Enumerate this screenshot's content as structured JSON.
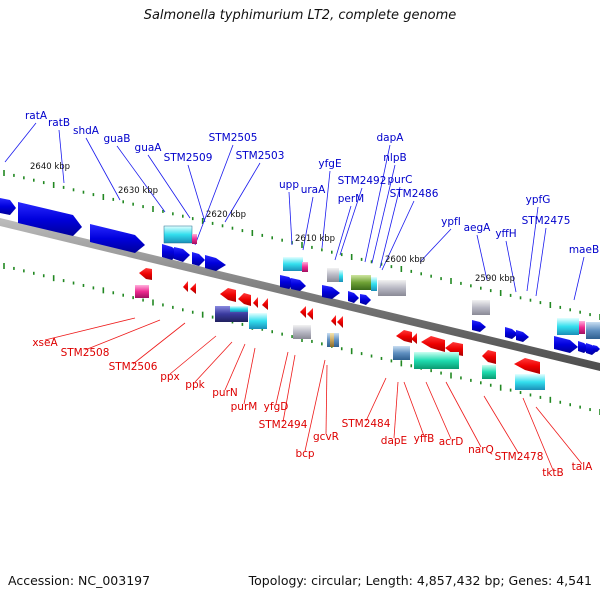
{
  "title": "Salmonella typhimurium LT2, complete genome",
  "footer": {
    "accession": "Accession: NC_003197",
    "summary": "Topology: circular; Length: 4,857,432 bp; Genes: 4,541"
  },
  "colors": {
    "forward_gene": "#0000dd",
    "reverse_gene": "#ee0000",
    "tick": "#228822",
    "backbone": "#808080",
    "leader": "#555555"
  },
  "ruler": [
    {
      "label": "2640 kbp"
    },
    {
      "label": "2630 kbp"
    },
    {
      "label": "2620 kbp"
    },
    {
      "label": "2610 kbp"
    },
    {
      "label": "2600 kbp"
    },
    {
      "label": "2590 kbp"
    }
  ],
  "top_labels": [
    {
      "name": "ratA"
    },
    {
      "name": "ratB"
    },
    {
      "name": "shdA"
    },
    {
      "name": "guaB"
    },
    {
      "name": "guaA"
    },
    {
      "name": "STM2509"
    },
    {
      "name": "STM2505"
    },
    {
      "name": "STM2503"
    },
    {
      "name": "upp"
    },
    {
      "name": "uraA"
    },
    {
      "name": "yfgE"
    },
    {
      "name": "STM2492"
    },
    {
      "name": "perM"
    },
    {
      "name": "dapA"
    },
    {
      "name": "nlpB"
    },
    {
      "name": "purC"
    },
    {
      "name": "STM2486"
    },
    {
      "name": "ypfI"
    },
    {
      "name": "aegA"
    },
    {
      "name": "yffH"
    },
    {
      "name": "ypfG"
    },
    {
      "name": "STM2475"
    },
    {
      "name": "maeB"
    }
  ],
  "bottom_labels": [
    {
      "name": "xseA"
    },
    {
      "name": "STM2508"
    },
    {
      "name": "STM2506"
    },
    {
      "name": "ppx"
    },
    {
      "name": "ppk"
    },
    {
      "name": "purN"
    },
    {
      "name": "purM"
    },
    {
      "name": "yfgD"
    },
    {
      "name": "STM2494"
    },
    {
      "name": "bcp"
    },
    {
      "name": "gcvR"
    },
    {
      "name": "STM2484"
    },
    {
      "name": "dapE"
    },
    {
      "name": "yffB"
    },
    {
      "name": "acrD"
    },
    {
      "name": "narQ"
    },
    {
      "name": "STM2478"
    },
    {
      "name": "tktB"
    },
    {
      "name": "talA"
    }
  ]
}
